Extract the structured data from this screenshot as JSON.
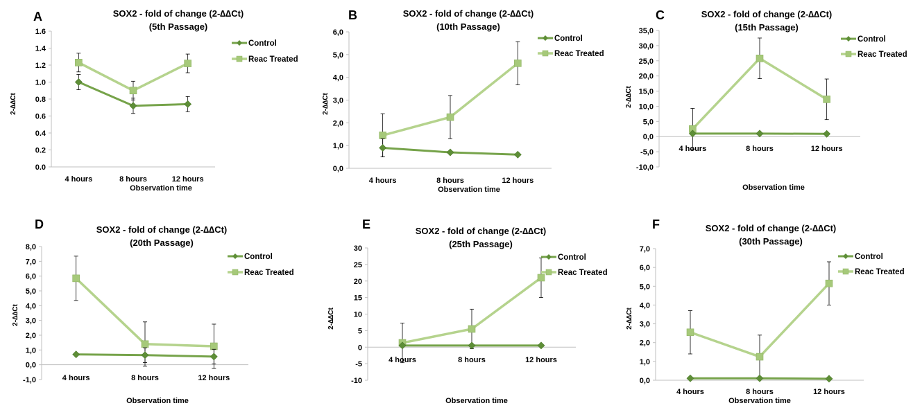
{
  "colors": {
    "control": "#76A34A",
    "treated": "#B5D38D",
    "control_marker": "#5E8E37",
    "treated_marker": "#A6C97A",
    "axis": "#BFBFBF",
    "error": "#000000"
  },
  "legend": {
    "control": "Control",
    "treated": "Reac Treated"
  },
  "chart_data": [
    {
      "panel": "A",
      "type": "line",
      "title_line1": "SOX2  - fold of change (2-∆∆Ct)",
      "title_line2": "(5th Passage)",
      "ylabel": "2-∆∆Ct",
      "xlabel": "Observation time",
      "categories": [
        "4 hours",
        "8 hours",
        "12 hours"
      ],
      "ylim": [
        0,
        1.6
      ],
      "yticks": [
        "0.0",
        "0.2",
        "0.4",
        "0.6",
        "0.8",
        "1.0",
        "1.2",
        "1.4",
        "1.6"
      ],
      "series": [
        {
          "name": "Control",
          "values": [
            1.0,
            0.72,
            0.74
          ],
          "errors": [
            0.09,
            0.09,
            0.09
          ]
        },
        {
          "name": "Reac Treated",
          "values": [
            1.23,
            0.9,
            1.22
          ],
          "errors": [
            0.11,
            0.11,
            0.11
          ]
        }
      ]
    },
    {
      "panel": "B",
      "type": "line",
      "title_line1": "SOX2 - fold of change (2-∆∆Ct)",
      "title_line2": "(10th Passage)",
      "ylabel": "2-∆∆Ct",
      "xlabel": "Observation time",
      "categories": [
        "4 hours",
        "8 hours",
        "12 hours"
      ],
      "ylim": [
        0,
        6
      ],
      "yticks": [
        "0,0",
        "1,0",
        "2,0",
        "3,0",
        "4,0",
        "5,0",
        "6,0"
      ],
      "series": [
        {
          "name": "Control",
          "values": [
            0.9,
            0.7,
            0.6
          ],
          "errors": [
            0.4,
            0,
            0
          ]
        },
        {
          "name": "Reac Treated",
          "values": [
            1.45,
            2.25,
            4.62
          ],
          "errors": [
            0.95,
            0.95,
            0.95
          ]
        }
      ]
    },
    {
      "panel": "C",
      "type": "line",
      "title_line1": "SOX2 - fold of change (2-∆∆Ct)",
      "title_line2": "(15th Passage)",
      "ylabel": "2-∆∆Ct",
      "xlabel": "Observation time",
      "categories": [
        "4 hours",
        "8 hours",
        "12 hours"
      ],
      "ylim": [
        -10,
        35
      ],
      "yticks": [
        "-10,0",
        "-5,0",
        "0,0",
        "5,0",
        "10,0",
        "15,0",
        "20,0",
        "25,0",
        "30,0",
        "35,0"
      ],
      "series": [
        {
          "name": "Control",
          "values": [
            1.0,
            1.0,
            0.9
          ],
          "errors": [
            0,
            0,
            0
          ]
        },
        {
          "name": "Reac Treated",
          "values": [
            2.5,
            25.8,
            12.3
          ],
          "errors": [
            6.8,
            6.7,
            6.7
          ]
        }
      ]
    },
    {
      "panel": "D",
      "type": "line",
      "title_line1": "SOX2 - fold of change (2-∆∆Ct)",
      "title_line2": "(20th Passage)",
      "ylabel": "2-∆∆Ct",
      "xlabel": "Observation time",
      "categories": [
        "4 hours",
        "8 hours",
        "12 hours"
      ],
      "ylim": [
        -1,
        8
      ],
      "yticks": [
        "-1,0",
        "0,0",
        "1,0",
        "2,0",
        "3,0",
        "4,0",
        "5,0",
        "6,0",
        "7,0",
        "8,0"
      ],
      "series": [
        {
          "name": "Control",
          "values": [
            0.7,
            0.65,
            0.55
          ],
          "errors": [
            0,
            0.5,
            0.5
          ]
        },
        {
          "name": "Reac Treated",
          "values": [
            5.85,
            1.4,
            1.25
          ],
          "errors": [
            1.5,
            1.5,
            1.5
          ]
        }
      ]
    },
    {
      "panel": "E",
      "type": "line",
      "title_line1": "SOX2 - fold of change (2-∆∆Ct)",
      "title_line2": "(25th Passage)",
      "ylabel": "2-∆∆Ct",
      "xlabel": "Observation time",
      "categories": [
        "4 hours",
        "8 hours",
        "12 hours"
      ],
      "ylim": [
        -10,
        30
      ],
      "yticks": [
        "-10",
        "-5",
        "0",
        "5",
        "10",
        "15",
        "20",
        "25",
        "30"
      ],
      "series": [
        {
          "name": "Control",
          "values": [
            0.5,
            0.5,
            0.5
          ],
          "errors": [
            0,
            0,
            0
          ]
        },
        {
          "name": "Reac Treated",
          "values": [
            1.3,
            5.5,
            21.0
          ],
          "errors": [
            6.0,
            6.0,
            6.0
          ]
        }
      ]
    },
    {
      "panel": "F",
      "type": "line",
      "title_line1": "SOX2 - fold of change (2-∆∆Ct)",
      "title_line2": "(30th Passage)",
      "ylabel": "2-∆∆Ct",
      "xlabel": "Observation time",
      "categories": [
        "4 hours",
        "8 hours",
        "12 hours"
      ],
      "ylim": [
        0,
        7
      ],
      "yticks": [
        "0,0",
        "1,0",
        "2,0",
        "3,0",
        "4,0",
        "5,0",
        "6,0",
        "7,0"
      ],
      "series": [
        {
          "name": "Control",
          "values": [
            0.1,
            0.1,
            0.08
          ],
          "errors": [
            0,
            0,
            0
          ]
        },
        {
          "name": "Reac Treated",
          "values": [
            2.55,
            1.25,
            5.15
          ],
          "errors": [
            1.15,
            1.15,
            1.15
          ]
        }
      ]
    }
  ]
}
